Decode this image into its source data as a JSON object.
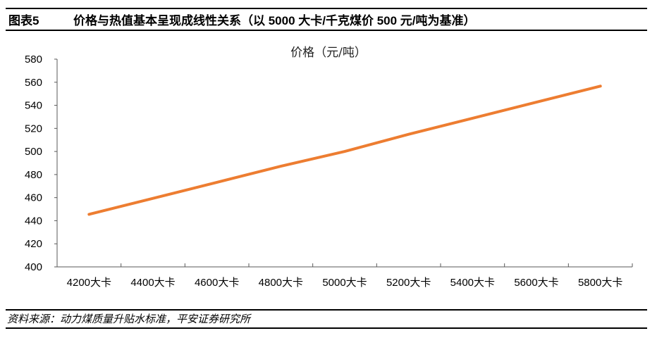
{
  "figure": {
    "label": "图表5",
    "title": "价格与热值基本呈现成线性关系（以 5000 大卡/千克煤价 500 元/吨为基准）",
    "source": "资料来源：动力煤质量升贴水标准，平安证券研究所"
  },
  "colors": {
    "line": "#ED7D31",
    "axis": "#595959"
  },
  "chart_data": {
    "type": "line",
    "title": "价格（元/吨）",
    "xlabel": "",
    "ylabel": "",
    "categories": [
      "4200大卡",
      "4400大卡",
      "4600大卡",
      "4800大卡",
      "5000大卡",
      "5200大卡",
      "5400大卡",
      "5600大卡",
      "5800大卡"
    ],
    "series": [
      {
        "name": "价格（元/吨）",
        "values": [
          445.5,
          459.4,
          473.3,
          487.2,
          500.0,
          514.9,
          528.8,
          542.7,
          556.6
        ]
      }
    ],
    "ylim": [
      400,
      580
    ],
    "yticks": [
      400,
      420,
      440,
      460,
      480,
      500,
      520,
      540,
      560,
      580
    ],
    "grid": false,
    "legend": "none"
  }
}
